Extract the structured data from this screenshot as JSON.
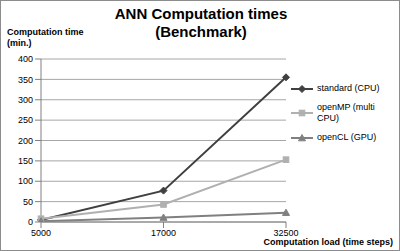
{
  "chart_data": {
    "type": "line",
    "title": "ANN Computation times (Benchmark)",
    "x_label": "Computation load (time steps)",
    "y_label": "Computation time (min.)",
    "categories": [
      "5000",
      "17000",
      "32500"
    ],
    "series": [
      {
        "name": "standard (CPU)",
        "color": "#404040",
        "marker": "diamond",
        "values": [
          5,
          77,
          355
        ]
      },
      {
        "name": "openMP (multi CPU)",
        "color": "#b0b0b0",
        "marker": "square",
        "values": [
          8,
          43,
          153
        ]
      },
      {
        "name": "openCL (GPU)",
        "color": "#808080",
        "marker": "triangle",
        "values": [
          2,
          11,
          23
        ]
      }
    ],
    "ylim": [
      0,
      400
    ],
    "yticks": [
      0,
      50,
      100,
      150,
      200,
      250,
      300,
      350,
      400
    ],
    "grid": true,
    "legend": "right"
  }
}
